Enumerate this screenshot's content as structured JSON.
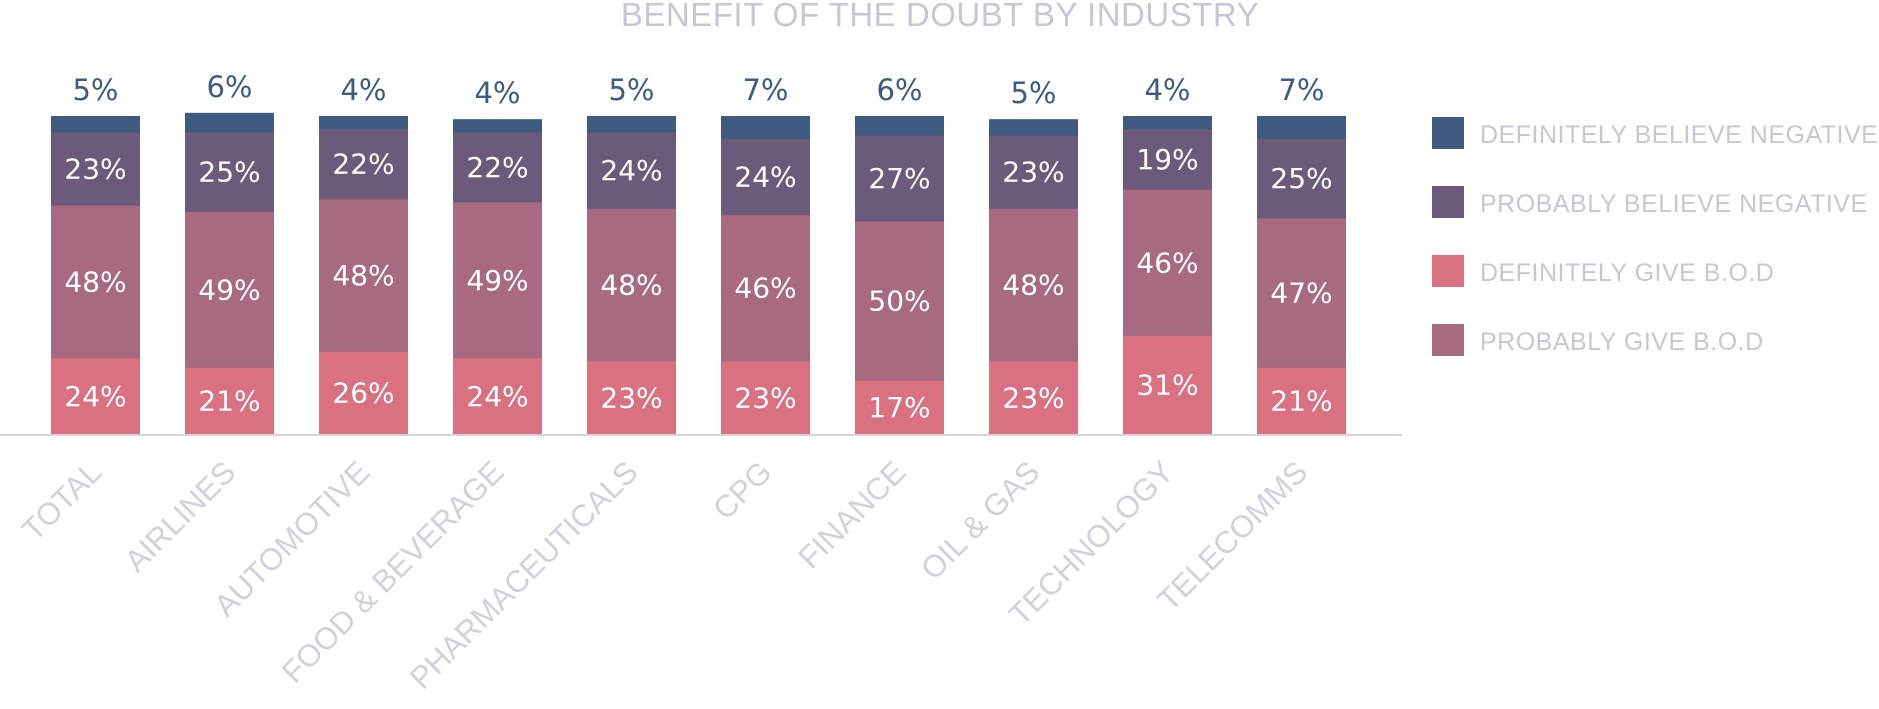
{
  "chart_data": {
    "type": "bar",
    "stacked": true,
    "title": "BENEFIT OF THE DOUBT BY INDUSTRY",
    "xlabel": "",
    "ylabel": "",
    "ylim": [
      0,
      100
    ],
    "grid": false,
    "legend_position": "right",
    "categories": [
      "TOTAL",
      "AIRLINES",
      "AUTOMOTIVE",
      "FOOD & BEVERAGE",
      "PHARMACEUTICALS",
      "CPG",
      "FINANCE",
      "OIL & GAS",
      "TECHNOLOGY",
      "TELECOMMS"
    ],
    "series": [
      {
        "name": "DEFINITELY GIVE B.O.D",
        "color": "#d97181",
        "values": [
          24,
          21,
          26,
          24,
          23,
          23,
          17,
          23,
          31,
          21
        ]
      },
      {
        "name": "PROBABLY GIVE B.O.D",
        "color": "#a86a80",
        "values": [
          48,
          49,
          48,
          49,
          48,
          46,
          50,
          48,
          46,
          47
        ]
      },
      {
        "name": "PROBABLY BELIEVE NEGATIVE",
        "color": "#6b5a7a",
        "values": [
          23,
          25,
          22,
          22,
          24,
          24,
          27,
          23,
          19,
          25
        ]
      },
      {
        "name": "DEFINITELY BELIEVE NEGATIVE",
        "color": "#3e5a7e",
        "values": [
          5,
          6,
          4,
          4,
          5,
          7,
          6,
          5,
          4,
          7
        ]
      }
    ],
    "legend_order": [
      "DEFINITELY BELIEVE NEGATIVE",
      "PROBABLY BELIEVE NEGATIVE",
      "DEFINITELY GIVE B.O.D",
      "PROBABLY GIVE B.O.D"
    ],
    "baseline_color": "#d6d3de"
  }
}
